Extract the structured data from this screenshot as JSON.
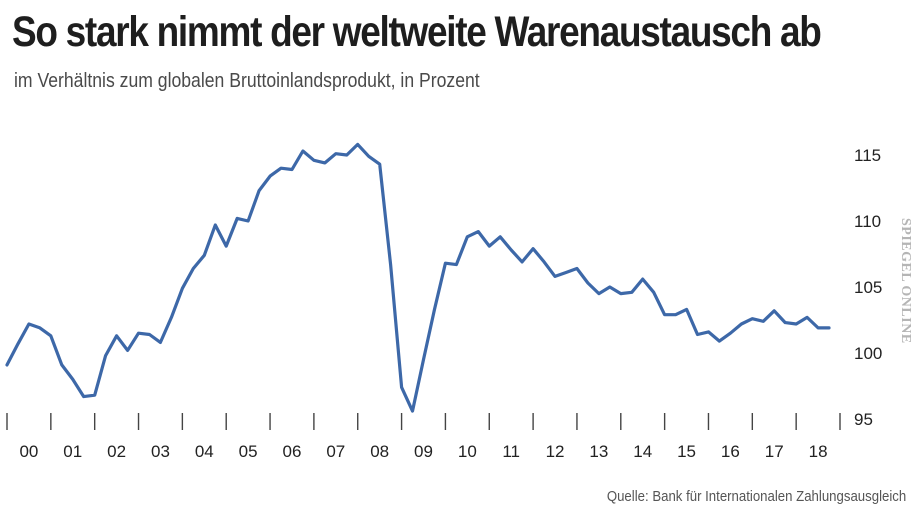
{
  "header": {
    "title": "So stark nimmt der weltweite Warenaustausch ab",
    "subtitle": "im Verhältnis zum globalen Bruttoinlandsprodukt, in Prozent"
  },
  "watermark": "SPIEGEL ONLINE",
  "source": "Quelle: Bank für Internationalen Zahlungsausgleich",
  "colors": {
    "line": "#3d68a8",
    "axis": "#444444"
  },
  "chart_data": {
    "type": "line",
    "title": "So stark nimmt der weltweite Warenaustausch ab",
    "subtitle": "im Verhältnis zum globalen Bruttoinlandsprodukt, in Prozent",
    "xlabel": "",
    "ylabel": "",
    "ylim": [
      95,
      117.5
    ],
    "xlim": [
      2000.0,
      2019.0
    ],
    "yticks": [
      95,
      100,
      105,
      110,
      115
    ],
    "ytick_labels": [
      "95",
      "100",
      "105",
      "110",
      "115"
    ],
    "y_axis_position": "right",
    "grid": false,
    "xticks": [
      2000,
      2001,
      2002,
      2003,
      2004,
      2005,
      2006,
      2007,
      2008,
      2009,
      2010,
      2011,
      2012,
      2013,
      2014,
      2015,
      2016,
      2017,
      2018,
      2019
    ],
    "xtick_labels": [
      "00",
      "01",
      "02",
      "03",
      "04",
      "05",
      "06",
      "07",
      "08",
      "09",
      "10",
      "11",
      "12",
      "13",
      "14",
      "15",
      "16",
      "17",
      "18"
    ],
    "series": [
      {
        "x": [
          2000.0,
          2000.25,
          2000.5,
          2000.75,
          2001.0,
          2001.25,
          2001.5,
          2001.75,
          2002.0,
          2002.25,
          2002.5,
          2002.75,
          2003.0,
          2003.25,
          2003.5,
          2003.75,
          2004.0,
          2004.25,
          2004.5,
          2004.75,
          2005.0,
          2005.25,
          2005.5,
          2005.75,
          2006.0,
          2006.25,
          2006.5,
          2006.75,
          2007.0,
          2007.25,
          2007.5,
          2007.75,
          2008.0,
          2008.25,
          2008.5,
          2008.75,
          2009.0,
          2009.25,
          2009.5,
          2009.75,
          2010.0,
          2010.25,
          2010.5,
          2010.75,
          2011.0,
          2011.25,
          2011.5,
          2011.75,
          2012.0,
          2012.25,
          2012.5,
          2012.75,
          2013.0,
          2013.25,
          2013.5,
          2013.75,
          2014.0,
          2014.25,
          2014.5,
          2014.75,
          2015.0,
          2015.25,
          2015.5,
          2015.75,
          2016.0,
          2016.25,
          2016.5,
          2016.75,
          2017.0,
          2017.25,
          2017.5,
          2017.75,
          2018.0,
          2018.25,
          2018.5,
          2018.75
        ],
        "y": [
          99.1,
          100.7,
          102.2,
          101.9,
          101.3,
          99.1,
          98.0,
          96.7,
          96.8,
          99.8,
          101.3,
          100.2,
          101.5,
          101.4,
          100.8,
          102.7,
          104.9,
          106.4,
          107.4,
          109.7,
          108.1,
          110.2,
          110.0,
          112.3,
          113.4,
          114.0,
          113.9,
          115.3,
          114.6,
          114.4,
          115.1,
          115.0,
          115.8,
          114.9,
          114.3,
          106.7,
          97.4,
          95.6,
          99.5,
          103.3,
          106.8,
          106.7,
          108.8,
          109.2,
          108.1,
          108.8,
          107.8,
          106.9,
          107.9,
          106.9,
          105.8,
          106.1,
          106.4,
          105.3,
          104.5,
          105.0,
          104.5,
          104.6,
          105.6,
          104.6,
          102.9,
          102.9,
          103.3,
          101.4,
          101.6,
          100.9,
          101.5,
          102.2,
          102.6,
          102.4,
          103.2,
          102.3,
          102.2,
          102.7,
          101.9,
          101.9
        ]
      }
    ]
  }
}
